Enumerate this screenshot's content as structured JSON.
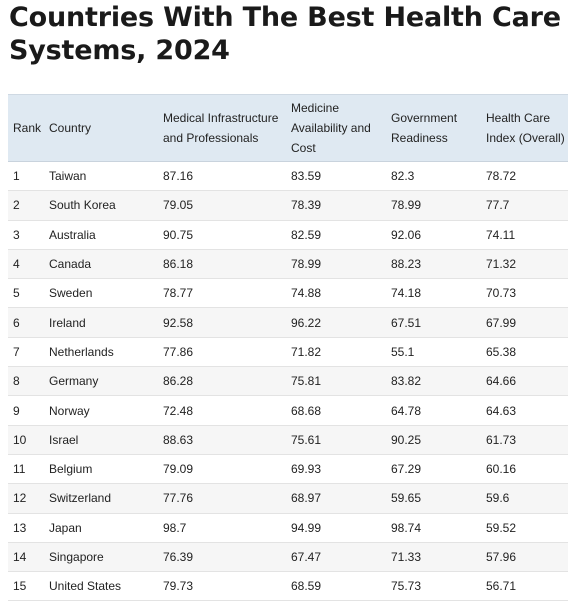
{
  "title_line1": "Countries With The Best Health Care",
  "title_line2": "Systems, 2024",
  "table": {
    "headers": [
      "Rank",
      "Country",
      "Medical Infrastructure and Professionals",
      "Medicine Availability and Cost",
      "Government Readiness",
      "Health Care Index (Overall)"
    ],
    "rows": [
      [
        "1",
        "Taiwan",
        "87.16",
        "83.59",
        "82.3",
        "78.72"
      ],
      [
        "2",
        "South Korea",
        "79.05",
        "78.39",
        "78.99",
        "77.7"
      ],
      [
        "3",
        "Australia",
        "90.75",
        "82.59",
        "92.06",
        "74.11"
      ],
      [
        "4",
        "Canada",
        "86.18",
        "78.99",
        "88.23",
        "71.32"
      ],
      [
        "5",
        "Sweden",
        "78.77",
        "74.88",
        "74.18",
        "70.73"
      ],
      [
        "6",
        "Ireland",
        "92.58",
        "96.22",
        "67.51",
        "67.99"
      ],
      [
        "7",
        "Netherlands",
        "77.86",
        "71.82",
        "55.1",
        "65.38"
      ],
      [
        "8",
        "Germany",
        "86.28",
        "75.81",
        "83.82",
        "64.66"
      ],
      [
        "9",
        "Norway",
        "72.48",
        "68.68",
        "64.78",
        "64.63"
      ],
      [
        "10",
        "Israel",
        "88.63",
        "75.61",
        "90.25",
        "61.73"
      ],
      [
        "11",
        "Belgium",
        "79.09",
        "69.93",
        "67.29",
        "60.16"
      ],
      [
        "12",
        "Switzerland",
        "77.76",
        "68.97",
        "59.65",
        "59.6"
      ],
      [
        "13",
        "Japan",
        "98.7",
        "94.99",
        "98.74",
        "59.52"
      ],
      [
        "14",
        "Singapore",
        "76.39",
        "67.47",
        "71.33",
        "57.96"
      ],
      [
        "15",
        "United States",
        "79.73",
        "68.59",
        "75.73",
        "56.71"
      ]
    ]
  },
  "colors": {
    "header_bg": "#dfe9f2",
    "stripe_bg": "#f6f6f6",
    "text": "#222222"
  }
}
